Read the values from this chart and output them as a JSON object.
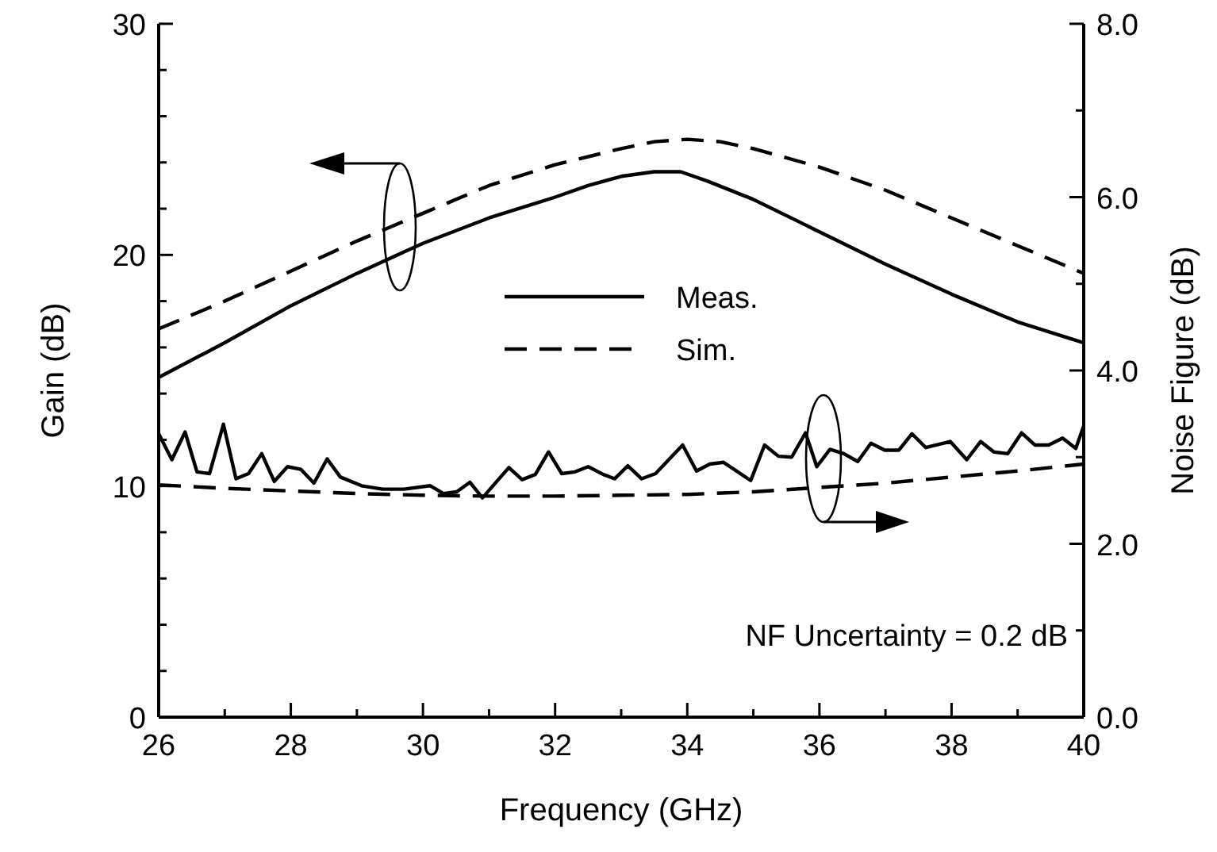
{
  "chart_data": {
    "type": "line",
    "xlabel": "Frequency (GHz)",
    "ylabel": "Gain (dB)",
    "y2label": "Noise Figure (dB)",
    "xlim": [
      26,
      40
    ],
    "xticks": [
      26,
      {
        "value": 27,
        "label": null
      },
      28,
      {
        "value": 29,
        "label": null
      },
      30,
      {
        "value": 31,
        "label": null
      },
      32,
      {
        "value": 33,
        "label": null
      },
      34,
      {
        "value": 35,
        "label": null
      },
      36,
      {
        "value": 37,
        "label": null
      },
      38,
      {
        "value": 39,
        "label": null
      },
      40
    ],
    "ylim": [
      0,
      30
    ],
    "yticks": [
      0,
      {
        "value": 2,
        "label": null
      },
      {
        "value": 4,
        "label": null
      },
      {
        "value": 6,
        "label": null
      },
      {
        "value": 8,
        "label": null
      },
      10,
      {
        "value": 12,
        "label": null
      },
      {
        "value": 14,
        "label": null
      },
      {
        "value": 16,
        "label": null
      },
      {
        "value": 18,
        "label": null
      },
      20,
      {
        "value": 22,
        "label": null
      },
      {
        "value": 24,
        "label": null
      },
      {
        "value": 26,
        "label": null
      },
      {
        "value": 28,
        "label": null
      },
      30
    ],
    "y2lim": [
      0,
      8
    ],
    "y2ticks": [
      {
        "value": 0,
        "label": "0.0"
      },
      {
        "value": 1,
        "label": null
      },
      {
        "value": 2,
        "label": "2.0"
      },
      {
        "value": 3,
        "label": null
      },
      {
        "value": 4,
        "label": "4.0"
      },
      {
        "value": 5,
        "label": null
      },
      {
        "value": 6,
        "label": "6.0"
      },
      {
        "value": 7,
        "label": null
      },
      {
        "value": 8,
        "label": "8.0"
      }
    ],
    "legend": "center",
    "grid": false,
    "annotations": [
      "NF Uncertainty = 0.2 dB"
    ],
    "series": [
      {
        "name": "Meas.",
        "color": "#000000",
        "line_style": "solid",
        "x": [
          26,
          27,
          28,
          29,
          30,
          31,
          32,
          32.5,
          33,
          33.5,
          33.9,
          34.3,
          35,
          36,
          37,
          38,
          39,
          40
        ],
        "values": [
          14.7,
          16.2,
          17.8,
          19.2,
          20.5,
          21.6,
          22.5,
          23.0,
          23.4,
          23.6,
          23.6,
          23.2,
          22.4,
          21.0,
          19.6,
          18.3,
          17.1,
          16.2
        ]
      },
      {
        "name": "Sim.",
        "color": "#000000",
        "line_style": "dashed",
        "x": [
          26,
          27,
          28,
          29,
          30,
          31,
          32,
          33,
          33.5,
          34,
          34.5,
          35,
          36,
          37,
          38,
          39,
          40
        ],
        "values": [
          16.8,
          18.0,
          19.3,
          20.6,
          21.8,
          23.0,
          23.9,
          24.6,
          24.9,
          25.0,
          24.9,
          24.6,
          23.8,
          22.8,
          21.6,
          20.4,
          19.2
        ]
      },
      {
        "color": "#000000",
        "line_style": "solid",
        "axis": "y2",
        "x": [
          26.0,
          26.2,
          26.4,
          26.58,
          26.77,
          26.98,
          27.17,
          27.36,
          27.56,
          27.75,
          27.95,
          28.15,
          28.35,
          28.55,
          28.75,
          29.07,
          29.39,
          29.71,
          30.11,
          30.31,
          30.51,
          30.71,
          30.9,
          31.3,
          31.5,
          31.7,
          31.9,
          32.1,
          32.3,
          32.5,
          32.73,
          32.9,
          33.1,
          33.31,
          33.52,
          33.93,
          34.14,
          34.34,
          34.55,
          34.96,
          35.17,
          35.38,
          35.58,
          35.79,
          35.96,
          36.16,
          36.37,
          36.58,
          36.78,
          36.99,
          37.2,
          37.4,
          37.61,
          37.98,
          38.23,
          38.44,
          38.64,
          38.85,
          39.06,
          39.26,
          39.47,
          39.68,
          39.88,
          40.0
        ],
        "values": [
          3.27,
          2.97,
          3.29,
          2.83,
          2.81,
          3.38,
          2.75,
          2.81,
          3.04,
          2.72,
          2.89,
          2.86,
          2.7,
          2.98,
          2.77,
          2.67,
          2.63,
          2.63,
          2.67,
          2.58,
          2.6,
          2.71,
          2.53,
          2.88,
          2.74,
          2.8,
          3.06,
          2.81,
          2.83,
          2.89,
          2.8,
          2.75,
          2.9,
          2.75,
          2.81,
          3.14,
          2.84,
          2.92,
          2.94,
          2.73,
          3.14,
          3.01,
          3.0,
          3.28,
          2.89,
          3.09,
          3.04,
          2.95,
          3.16,
          3.08,
          3.08,
          3.27,
          3.11,
          3.18,
          2.97,
          3.18,
          3.06,
          3.04,
          3.28,
          3.14,
          3.14,
          3.22,
          3.1,
          3.36
        ]
      },
      {
        "color": "#000000",
        "line_style": "dashed",
        "axis": "y2",
        "x": [
          26,
          27,
          28,
          29,
          30,
          31,
          32,
          33,
          34,
          35,
          36,
          37,
          38,
          39,
          40
        ],
        "values": [
          2.68,
          2.64,
          2.61,
          2.58,
          2.56,
          2.55,
          2.55,
          2.56,
          2.57,
          2.6,
          2.65,
          2.7,
          2.77,
          2.84,
          2.92
        ]
      }
    ]
  }
}
